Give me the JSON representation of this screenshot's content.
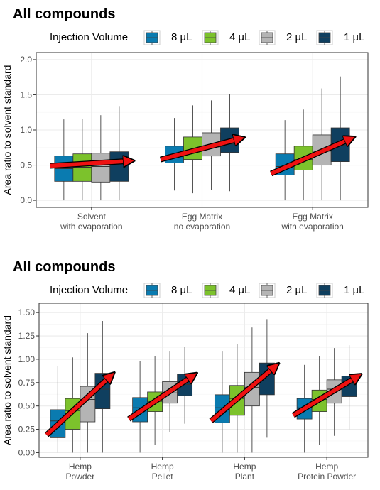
{
  "colors": {
    "8 µL": "#0a7bb0",
    "4 µL": "#7cc22c",
    "2 µL": "#b4b4b4",
    "1 µL": "#0f3f5f",
    "arrow": "#ee1111",
    "grid": "#ebebeb"
  },
  "chart_data": [
    {
      "type": "box",
      "title": "All compounds",
      "legend": {
        "title": "Injection Volume",
        "placement": "top",
        "entries": [
          "8 µL",
          "4 µL",
          "2 µL",
          "1 µL"
        ]
      },
      "ylabel": "Area ratio to solvent standard",
      "xlabel": "",
      "ylim": [
        -0.1,
        2.1
      ],
      "yticks": [
        "0.0",
        "0.5",
        "1.0",
        "1.5",
        "2.0"
      ],
      "grid": true,
      "groups": [
        {
          "label": "Solvent\nwith evaporation",
          "boxes": [
            {
              "series": "8 µL",
              "min": 0.0,
              "q1": 0.27,
              "median": 0.45,
              "q3": 0.63,
              "max": 1.15
            },
            {
              "series": "4 µL",
              "min": 0.0,
              "q1": 0.27,
              "median": 0.47,
              "q3": 0.66,
              "max": 1.16
            },
            {
              "series": "2 µL",
              "min": 0.0,
              "q1": 0.26,
              "median": 0.48,
              "q3": 0.67,
              "max": 1.21
            },
            {
              "series": "1 µL",
              "min": 0.0,
              "q1": 0.27,
              "median": 0.5,
              "q3": 0.69,
              "max": 1.34
            }
          ],
          "trend": [
            0.49,
            0.56
          ]
        },
        {
          "label": "Egg Matrix\nno evaporation",
          "boxes": [
            {
              "series": "8 µL",
              "min": 0.14,
              "q1": 0.53,
              "median": 0.62,
              "q3": 0.77,
              "max": 1.17
            },
            {
              "series": "4 µL",
              "min": 0.1,
              "q1": 0.58,
              "median": 0.7,
              "q3": 0.9,
              "max": 1.35
            },
            {
              "series": "2 µL",
              "min": 0.15,
              "q1": 0.63,
              "median": 0.76,
              "q3": 0.96,
              "max": 1.42
            },
            {
              "series": "1 µL",
              "min": 0.13,
              "q1": 0.68,
              "median": 0.8,
              "q3": 1.03,
              "max": 1.51
            }
          ],
          "trend": [
            0.58,
            0.88
          ]
        },
        {
          "label": "Egg Matrix\nwith evaporation",
          "boxes": [
            {
              "series": "8 µL",
              "min": 0.0,
              "q1": 0.36,
              "median": 0.48,
              "q3": 0.66,
              "max": 1.14
            },
            {
              "series": "4 µL",
              "min": 0.0,
              "q1": 0.43,
              "median": 0.58,
              "q3": 0.77,
              "max": 1.29
            },
            {
              "series": "2 µL",
              "min": 0.0,
              "q1": 0.5,
              "median": 0.7,
              "q3": 0.93,
              "max": 1.59
            },
            {
              "series": "1 µL",
              "min": 0.0,
              "q1": 0.55,
              "median": 0.78,
              "q3": 1.03,
              "max": 1.76
            }
          ],
          "trend": [
            0.38,
            0.88
          ]
        }
      ]
    },
    {
      "type": "box",
      "title": "All compounds",
      "legend": {
        "title": "Injection Volume",
        "placement": "top",
        "entries": [
          "8 µL",
          "4 µL",
          "2 µL",
          "1 µL"
        ]
      },
      "ylabel": "Area ratio to solvent standard",
      "xlabel": "",
      "ylim": [
        -0.05,
        1.6
      ],
      "yticks": [
        "0.00",
        "0.25",
        "0.50",
        "0.75",
        "1.00",
        "1.25",
        "1.50"
      ],
      "grid": true,
      "groups": [
        {
          "label": "Hemp\nPowder",
          "boxes": [
            {
              "series": "8 µL",
              "min": 0.0,
              "q1": 0.16,
              "median": 0.34,
              "q3": 0.46,
              "max": 0.93
            },
            {
              "series": "4 µL",
              "min": 0.0,
              "q1": 0.25,
              "median": 0.45,
              "q3": 0.58,
              "max": 1.02
            },
            {
              "series": "2 µL",
              "min": 0.0,
              "q1": 0.33,
              "median": 0.57,
              "q3": 0.71,
              "max": 1.28
            },
            {
              "series": "1 µL",
              "min": 0.0,
              "q1": 0.47,
              "median": 0.68,
              "q3": 0.85,
              "max": 1.41
            }
          ],
          "trend": [
            0.19,
            0.83
          ]
        },
        {
          "label": "Hemp\nPellet",
          "boxes": [
            {
              "series": "8 µL",
              "min": 0.0,
              "q1": 0.33,
              "median": 0.48,
              "q3": 0.59,
              "max": 0.98
            },
            {
              "series": "4 µL",
              "min": 0.08,
              "q1": 0.44,
              "median": 0.55,
              "q3": 0.65,
              "max": 1.03
            },
            {
              "series": "2 µL",
              "min": 0.22,
              "q1": 0.53,
              "median": 0.64,
              "q3": 0.76,
              "max": 1.09
            },
            {
              "series": "1 µL",
              "min": 0.31,
              "q1": 0.61,
              "median": 0.73,
              "q3": 0.84,
              "max": 1.13
            }
          ],
          "trend": [
            0.36,
            0.83
          ]
        },
        {
          "label": "Hemp\nPlant",
          "boxes": [
            {
              "series": "8 µL",
              "min": 0.0,
              "q1": 0.32,
              "median": 0.48,
              "q3": 0.62,
              "max": 1.09
            },
            {
              "series": "4 µL",
              "min": 0.0,
              "q1": 0.4,
              "median": 0.58,
              "q3": 0.72,
              "max": 1.16
            },
            {
              "series": "2 µL",
              "min": 0.0,
              "q1": 0.5,
              "median": 0.7,
              "q3": 0.86,
              "max": 1.34
            },
            {
              "series": "1 µL",
              "min": 0.16,
              "q1": 0.62,
              "median": 0.79,
              "q3": 0.96,
              "max": 1.43
            }
          ],
          "trend": [
            0.34,
            0.93
          ]
        },
        {
          "label": "Hemp\nProtein Powder",
          "boxes": [
            {
              "series": "8 µL",
              "min": 0.0,
              "q1": 0.36,
              "median": 0.48,
              "q3": 0.58,
              "max": 0.94
            },
            {
              "series": "4 µL",
              "min": 0.08,
              "q1": 0.44,
              "median": 0.57,
              "q3": 0.67,
              "max": 1.03
            },
            {
              "series": "2 µL",
              "min": 0.18,
              "q1": 0.53,
              "median": 0.68,
              "q3": 0.78,
              "max": 1.12
            },
            {
              "series": "1 µL",
              "min": 0.25,
              "q1": 0.6,
              "median": 0.74,
              "q3": 0.82,
              "max": 1.15
            }
          ],
          "trend": [
            0.4,
            0.82
          ]
        }
      ]
    }
  ]
}
